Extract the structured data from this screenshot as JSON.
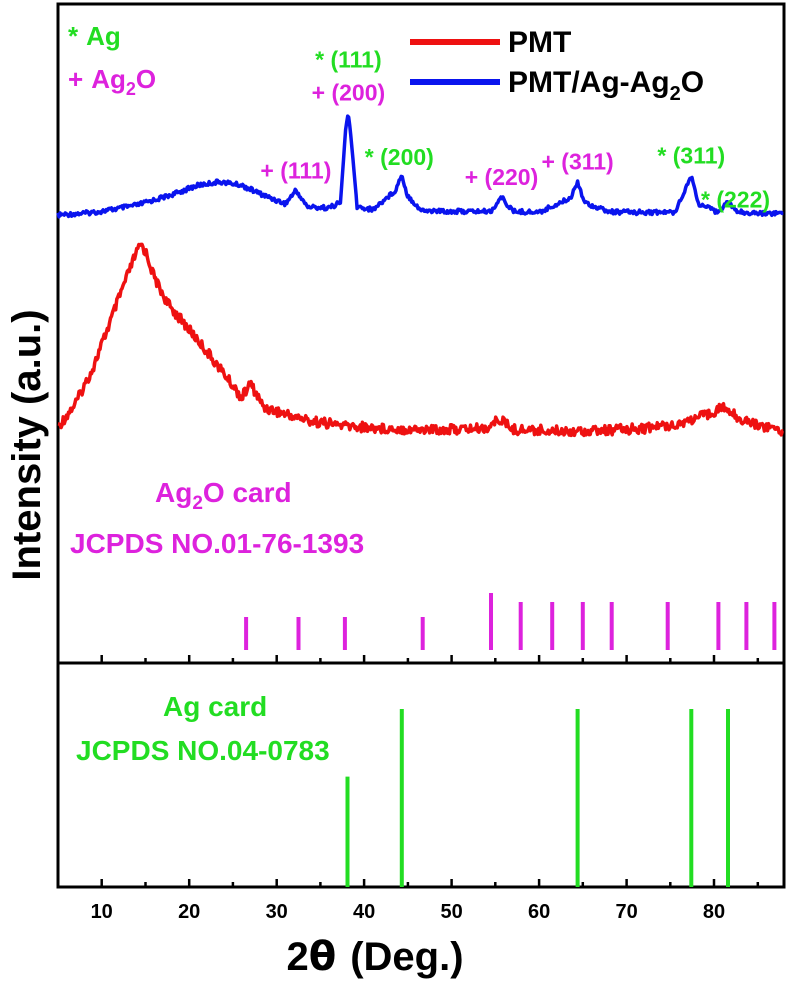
{
  "chart_data": {
    "type": "line",
    "xlabel_prefix": "2",
    "xlabel_theta": "θ",
    "xlabel_suffix": "(Deg.)",
    "ylabel": "Intensity (a.u.)",
    "xlim": [
      5,
      88
    ],
    "xticks": [
      10,
      20,
      30,
      40,
      50,
      60,
      70,
      80
    ],
    "legend": {
      "position": "top-right",
      "entries": [
        {
          "series": "pmt",
          "label_main": "PMT",
          "label_sub": "",
          "label_tail": ""
        },
        {
          "series": "pmt_ag",
          "label_main": "PMT/Ag-Ag",
          "label_sub": "2",
          "label_tail": "O"
        }
      ]
    },
    "phase_key": [
      {
        "symbol": "*",
        "main": "Ag",
        "sub": "",
        "tail": "",
        "color": "#22dd22"
      },
      {
        "symbol": "+",
        "main": "Ag",
        "sub": "2",
        "tail": "O",
        "color": "#dd22dd"
      }
    ],
    "series": [
      {
        "name": "PMT/Ag-Ag2O",
        "id": "pmt_ag",
        "color": "#0a14ee",
        "x": [
          5,
          8,
          10,
          14,
          18,
          21,
          23.5,
          26,
          28.5,
          31,
          32.2,
          33.5,
          36,
          37.3,
          37.9,
          38.2,
          38.5,
          39.2,
          41,
          43.6,
          44.3,
          44.9,
          46.5,
          50,
          54.5,
          55.7,
          57,
          60,
          63.6,
          64.4,
          65.2,
          68,
          72,
          75.5,
          77.0,
          77.4,
          78.2,
          80.3,
          81.6,
          82.7,
          85,
          88
        ],
        "y": [
          0.0,
          0.04,
          0.08,
          0.22,
          0.45,
          0.66,
          0.74,
          0.66,
          0.44,
          0.25,
          0.55,
          0.18,
          0.16,
          0.28,
          1.95,
          2.28,
          1.7,
          0.18,
          0.12,
          0.55,
          0.91,
          0.45,
          0.1,
          0.08,
          0.08,
          0.4,
          0.08,
          0.06,
          0.38,
          0.75,
          0.28,
          0.07,
          0.06,
          0.06,
          0.7,
          0.88,
          0.25,
          0.07,
          0.28,
          0.07,
          0.04,
          0.04
        ]
      },
      {
        "name": "PMT",
        "id": "pmt",
        "color": "#ee1111",
        "x": [
          5,
          7,
          9,
          11,
          12.5,
          13.8,
          14.5,
          15.1,
          16,
          17.5,
          19.5,
          21.5,
          24,
          26,
          27,
          28.5,
          31,
          34,
          38,
          42,
          46,
          50,
          54,
          55.5,
          57,
          62,
          67,
          72,
          76,
          79,
          81,
          83,
          85,
          88
        ],
        "y": [
          0.05,
          0.25,
          0.55,
          0.95,
          1.25,
          1.5,
          1.6,
          1.52,
          1.32,
          1.1,
          0.92,
          0.74,
          0.5,
          0.3,
          0.42,
          0.22,
          0.16,
          0.1,
          0.06,
          0.04,
          0.03,
          0.03,
          0.04,
          0.12,
          0.03,
          0.02,
          0.02,
          0.04,
          0.08,
          0.15,
          0.22,
          0.12,
          0.07,
          0.02
        ]
      }
    ],
    "peak_labels": [
      {
        "text": "+ (111)",
        "x": 32.2,
        "series": "pmt_ag",
        "color": "#dd22dd"
      },
      {
        "text": "* (111)",
        "x": 38.2,
        "series": "pmt_ag",
        "color": "#22dd22",
        "stack": 2
      },
      {
        "text": "+ (200)",
        "x": 38.2,
        "series": "pmt_ag",
        "color": "#dd22dd",
        "stack": 1
      },
      {
        "text": "* (200)",
        "x": 44.3,
        "series": "pmt_ag",
        "color": "#22dd22"
      },
      {
        "text": "+ (220)",
        "x": 55.7,
        "series": "pmt_ag",
        "color": "#dd22dd"
      },
      {
        "text": "+ (311)",
        "x": 64.4,
        "series": "pmt_ag",
        "color": "#dd22dd"
      },
      {
        "text": "* (311)",
        "x": 77.4,
        "series": "pmt_ag",
        "color": "#22dd22"
      },
      {
        "text": "* (222)",
        "x": 81.6,
        "series": "pmt_ag",
        "color": "#22dd22"
      }
    ],
    "reference_cards": [
      {
        "id": "ag2o",
        "title_main": "Ag",
        "title_sub": "2",
        "title_tail": "O card",
        "jcpds": "JCPDS NO.01-76-1393",
        "color": "#dd22dd",
        "lines": [
          {
            "x": 26.5,
            "h": 0.55
          },
          {
            "x": 32.5,
            "h": 0.55
          },
          {
            "x": 37.8,
            "h": 0.55
          },
          {
            "x": 46.7,
            "h": 0.55
          },
          {
            "x": 54.5,
            "h": 0.95
          },
          {
            "x": 57.9,
            "h": 0.8
          },
          {
            "x": 61.5,
            "h": 0.8
          },
          {
            "x": 65.0,
            "h": 0.8
          },
          {
            "x": 68.3,
            "h": 0.8
          },
          {
            "x": 74.7,
            "h": 0.8
          },
          {
            "x": 80.5,
            "h": 0.8
          },
          {
            "x": 83.7,
            "h": 0.8
          },
          {
            "x": 86.9,
            "h": 0.8
          }
        ]
      },
      {
        "id": "ag",
        "title_main": "Ag card",
        "title_sub": "",
        "title_tail": "",
        "jcpds": "JCPDS NO.04-0783",
        "color": "#22dd22",
        "lines": [
          {
            "x": 38.1,
            "h": 0.62
          },
          {
            "x": 44.3,
            "h": 1.0
          },
          {
            "x": 64.4,
            "h": 1.0
          },
          {
            "x": 77.4,
            "h": 1.0
          },
          {
            "x": 81.6,
            "h": 1.0
          }
        ]
      }
    ]
  }
}
